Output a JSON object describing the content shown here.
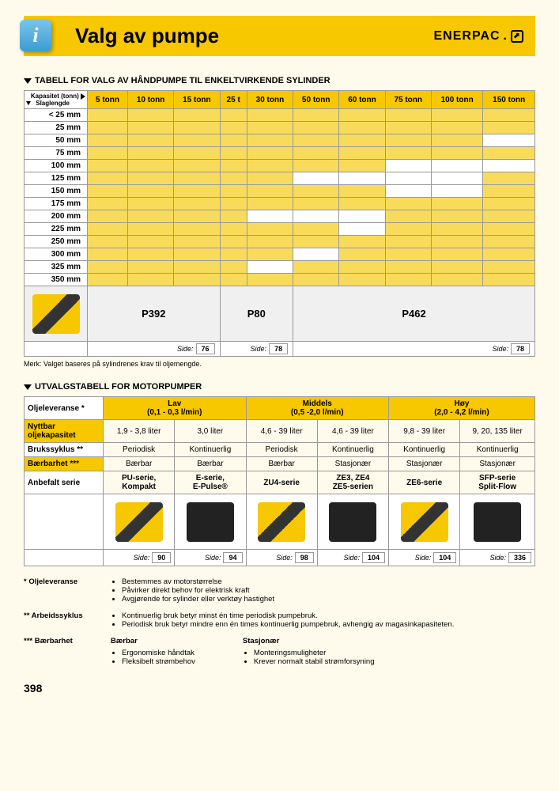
{
  "header": {
    "title": "Valg av pumpe",
    "brand": "ENERPAC"
  },
  "section1": {
    "title": "TABELL FOR VALG AV HÅNDPUMPE TIL ENKELTVIRKENDE SYLINDER",
    "corner1": "Kapasitet (tonn)",
    "corner2": "Slaglengde",
    "cols": [
      "5 tonn",
      "10 tonn",
      "15 tonn",
      "25 t",
      "30 tonn",
      "50 tonn",
      "60 tonn",
      "75 tonn",
      "100 tonn",
      "150 tonn"
    ],
    "rows": [
      "< 25 mm",
      "25 mm",
      "50 mm",
      "75 mm",
      "100 mm",
      "125 mm",
      "150 mm",
      "175 mm",
      "200 mm",
      "225 mm",
      "250 mm",
      "300 mm",
      "325 mm",
      "350 mm"
    ],
    "fill": [
      [
        1,
        1,
        1,
        1,
        1,
        1,
        1,
        1,
        1,
        1
      ],
      [
        1,
        1,
        1,
        1,
        1,
        1,
        1,
        1,
        1,
        1
      ],
      [
        1,
        1,
        1,
        1,
        1,
        1,
        1,
        1,
        1,
        0
      ],
      [
        1,
        1,
        1,
        1,
        1,
        1,
        1,
        1,
        1,
        1
      ],
      [
        1,
        1,
        1,
        1,
        1,
        1,
        1,
        0,
        0,
        0
      ],
      [
        1,
        1,
        1,
        1,
        1,
        0,
        0,
        0,
        0,
        1
      ],
      [
        1,
        1,
        1,
        1,
        1,
        1,
        1,
        0,
        0,
        1
      ],
      [
        1,
        1,
        1,
        1,
        1,
        1,
        1,
        1,
        1,
        1
      ],
      [
        1,
        1,
        1,
        1,
        0,
        0,
        0,
        1,
        1,
        1
      ],
      [
        1,
        1,
        1,
        1,
        1,
        1,
        0,
        1,
        1,
        1
      ],
      [
        1,
        1,
        1,
        1,
        1,
        1,
        1,
        1,
        1,
        1
      ],
      [
        1,
        1,
        1,
        1,
        1,
        0,
        1,
        1,
        1,
        1
      ],
      [
        1,
        1,
        1,
        1,
        0,
        1,
        1,
        1,
        1,
        1
      ],
      [
        1,
        1,
        1,
        1,
        1,
        1,
        1,
        1,
        1,
        1
      ]
    ],
    "pumps": [
      {
        "name": "P392",
        "span": 3,
        "page": "76"
      },
      {
        "name": "P80",
        "span": 2,
        "page": "78"
      },
      {
        "name": "P462",
        "span": 5,
        "page": "78"
      }
    ],
    "sideLabel": "Side:",
    "note": "Merk: Valget baseres på sylindrenes krav til oljemengde."
  },
  "section2": {
    "title": "UTVALGSTABELL FOR MOTORPUMPER",
    "rowLabels": {
      "delivery": "Oljeleveranse *",
      "capacity": "Nyttbar oljekapasitet",
      "duty": "Brukssyklus **",
      "portability": "Bærbarhet ***",
      "series": "Anbefalt serie",
      "sideLabel": "Side:"
    },
    "groups": [
      {
        "label": "Lav",
        "sub": "(0,1 - 0,3 l/min)"
      },
      {
        "label": "Middels",
        "sub": "(0,5 -2,0 l/min)"
      },
      {
        "label": "Høy",
        "sub": "(2,0 - 4,2 l/min)"
      }
    ],
    "cols": [
      {
        "cap": "1,9 - 3,8 liter",
        "duty": "Periodisk",
        "port": "Bærbar",
        "series1": "PU-serie,",
        "series2": "Kompakt",
        "page": "90"
      },
      {
        "cap": "3,0 liter",
        "duty": "Kontinuerlig",
        "port": "Bærbar",
        "series1": "E-serie,",
        "series2": "E-Pulse®",
        "page": "94"
      },
      {
        "cap": "4,6 - 39 liter",
        "duty": "Periodisk",
        "port": "Bærbar",
        "series1": "ZU4-serie",
        "series2": "",
        "page": "98"
      },
      {
        "cap": "4,6 - 39 liter",
        "duty": "Kontinuerlig",
        "port": "Stasjonær",
        "series1": "ZE3, ZE4",
        "series2": "ZE5-serien",
        "page": "104"
      },
      {
        "cap": "9,8 - 39 liter",
        "duty": "Kontinuerlig",
        "port": "Stasjonær",
        "series1": "ZE6-serie",
        "series2": "",
        "page": "104"
      },
      {
        "cap": "9, 20, 135 liter",
        "duty": "Kontinuerlig",
        "port": "Stasjonær",
        "series1": "SFP-serie",
        "series2": "Split-Flow",
        "page": "336"
      }
    ]
  },
  "footnotes": {
    "f1": {
      "label": "* Oljeleveranse",
      "items": [
        "Bestemmes av motorstørrelse",
        "Påvirker direkt behov for elektrisk kraft",
        "Avgjørende for sylinder eller verktøy hastighet"
      ]
    },
    "f2": {
      "label": "** Arbeidssyklus",
      "items": [
        "Kontinuerlig bruk betyr minst én time periodisk pumpebruk.",
        "Periodisk bruk betyr mindre enn én times kontinuerlig pumpebruk, avhengig av magasinkapasiteten."
      ]
    },
    "f3": {
      "label": "*** Bærbarhet",
      "col1": {
        "hdr": "Bærbar",
        "items": [
          "Ergonomiske håndtak",
          "Fleksibelt strømbehov"
        ]
      },
      "col2": {
        "hdr": "Stasjonær",
        "items": [
          "Monteringsmuligheter",
          "Krever normalt stabil strømforsyning"
        ]
      }
    }
  },
  "pageNumber": "398"
}
